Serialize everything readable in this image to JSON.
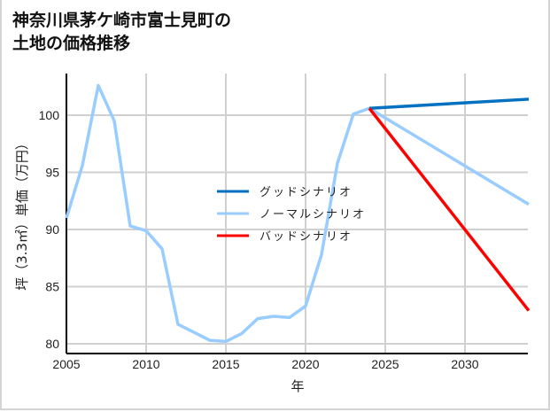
{
  "title_line1": "神奈川県茅ケ崎市富士見町の",
  "title_line2": "土地の価格推移",
  "chart_data": {
    "type": "line",
    "title": "神奈川県茅ケ崎市富士見町の土地の価格推移",
    "xlabel": "年",
    "ylabel": "坪（3.3㎡）単価（万円）",
    "xlim": [
      2005,
      2034
    ],
    "ylim": [
      79.2,
      103.5
    ],
    "xticks": [
      2005,
      2010,
      2015,
      2020,
      2025,
      2030
    ],
    "yticks": [
      80,
      85,
      90,
      95,
      100
    ],
    "grid": true,
    "legend_position": "center",
    "series": [
      {
        "name": "グッドシナリオ",
        "color": "#0070c0",
        "x": [
          2024,
          2034
        ],
        "values": [
          100.6,
          101.4
        ]
      },
      {
        "name": "ノーマルシナリオ",
        "color": "#99ccff",
        "x": [
          2005,
          2006,
          2007,
          2008,
          2009,
          2010,
          2011,
          2012,
          2013,
          2014,
          2015,
          2016,
          2017,
          2018,
          2019,
          2020,
          2021,
          2022,
          2023,
          2024,
          2034
        ],
        "values": [
          91.0,
          95.6,
          102.6,
          99.5,
          90.3,
          89.9,
          88.3,
          81.7,
          81.0,
          80.3,
          80.2,
          80.9,
          82.2,
          82.4,
          82.3,
          83.3,
          87.8,
          95.8,
          100.1,
          100.6,
          92.2
        ]
      },
      {
        "name": "バッドシナリオ",
        "color": "#ff0000",
        "x": [
          2024,
          2034
        ],
        "values": [
          100.6,
          82.9
        ]
      }
    ]
  }
}
